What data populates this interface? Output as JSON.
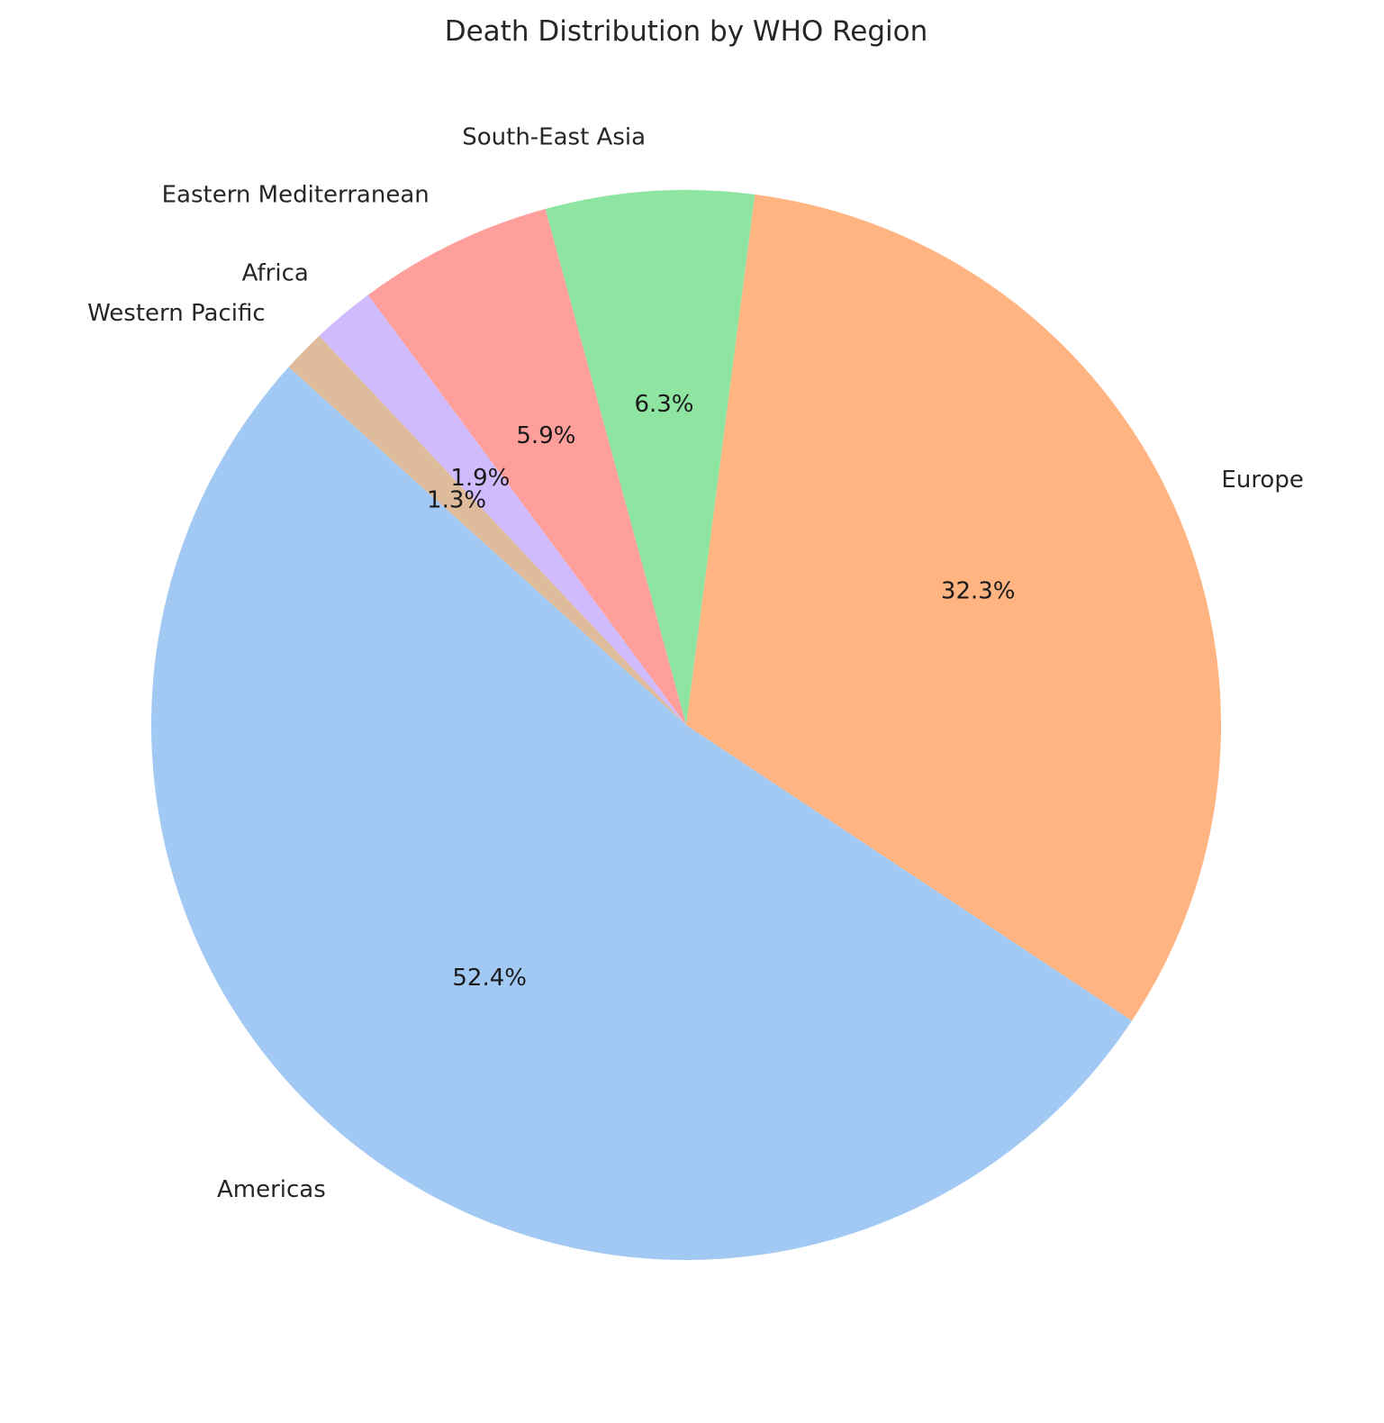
{
  "chart_data": {
    "type": "pie",
    "title": "Death Distribution by WHO Region",
    "start_angle_deg": 138,
    "direction": "counterclockwise",
    "slices": [
      {
        "label": "Americas",
        "value": 52.4,
        "pct_label": "52.4%",
        "color": "#a1c9f4"
      },
      {
        "label": "Europe",
        "value": 32.3,
        "pct_label": "32.3%",
        "color": "#ffb482"
      },
      {
        "label": "South-East Asia",
        "value": 6.3,
        "pct_label": "6.3%",
        "color": "#8de5a1"
      },
      {
        "label": "Eastern Mediterranean",
        "value": 5.9,
        "pct_label": "5.9%",
        "color": "#ff9f9b"
      },
      {
        "label": "Africa",
        "value": 1.9,
        "pct_label": "1.9%",
        "color": "#d0bbff"
      },
      {
        "label": "Western Pacific",
        "value": 1.3,
        "pct_label": "1.3%",
        "color": "#debb9b"
      }
    ]
  }
}
